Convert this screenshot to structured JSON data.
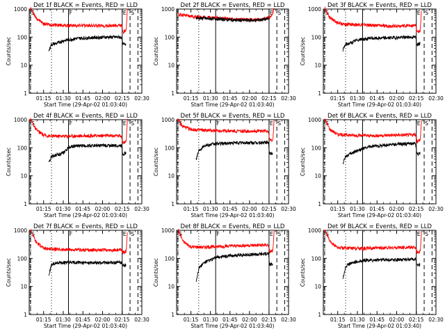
{
  "chart_data": [
    {
      "type": "line",
      "title": "Det 1f BLACK = Events, RED = LLD",
      "xlabel": "Start Time (29-Apr-02 01:03:40)",
      "ylabel": "Counts/sec",
      "yscale": "log",
      "ylim": [
        1,
        1000
      ],
      "xlim_minutes": [
        4,
        90
      ],
      "xticks": [
        "01:15",
        "01:30",
        "01:45",
        "02:00",
        "02:15",
        "02:30"
      ],
      "yticks": [
        "1",
        "10",
        "100",
        "1000"
      ],
      "markers": [
        {
          "label": "S",
          "x_min": 5,
          "style": "dashed"
        },
        {
          "label": "",
          "x_min": 21,
          "style": "dotted"
        },
        {
          "label": "F",
          "x_min": 34,
          "style": "solid"
        },
        {
          "label": "E",
          "x_min": 75,
          "style": "solid"
        },
        {
          "label": "S",
          "x_min": 81,
          "style": "dashed"
        },
        {
          "label": "",
          "x_min": 87,
          "style": "dashed"
        }
      ],
      "series": [
        {
          "name": "LLD",
          "color": "#ff0000",
          "x_min": [
            5,
            9,
            15,
            20,
            25,
            35,
            50,
            60,
            70,
            74.5,
            75.5,
            78,
            79
          ],
          "values": [
            1100,
            500,
            300,
            280,
            270,
            260,
            260,
            250,
            260,
            260,
            150,
            175,
            1000
          ]
        },
        {
          "name": "Events",
          "color": "#000000",
          "x_min": [
            19,
            21,
            25,
            30,
            40,
            50,
            60,
            74.5,
            75.5,
            78
          ],
          "values": [
            33,
            55,
            60,
            75,
            90,
            95,
            100,
            100,
            55,
            60
          ]
        }
      ]
    },
    {
      "type": "line",
      "title": "Det 2f BLACK = Events, RED = LLD",
      "xlabel": "Start Time (29-Apr-02 01:03:40)",
      "ylabel": "Counts/sec",
      "yscale": "log",
      "ylim": [
        1,
        1000
      ],
      "xlim_minutes": [
        4,
        90
      ],
      "xticks": [
        "01:15",
        "01:30",
        "01:45",
        "02:00",
        "02:15",
        "02:30"
      ],
      "yticks": [
        "1",
        "10",
        "100",
        "1000"
      ],
      "markers": [
        {
          "label": "",
          "x_min": 5,
          "style": "dashed"
        },
        {
          "label": "",
          "x_min": 21,
          "style": "dotted"
        },
        {
          "label": "",
          "x_min": 34,
          "style": "solid"
        },
        {
          "label": "E",
          "x_min": 75,
          "style": "solid"
        },
        {
          "label": "S",
          "x_min": 81,
          "style": "dashed"
        },
        {
          "label": "",
          "x_min": 87,
          "style": "dashed"
        }
      ],
      "series": [
        {
          "name": "LLD",
          "color": "#ff0000",
          "x_min": [
            5,
            10,
            20,
            35,
            50,
            65,
            72,
            75,
            77,
            79
          ],
          "values": [
            650,
            600,
            520,
            490,
            420,
            420,
            460,
            480,
            560,
            1100
          ]
        },
        {
          "name": "Events",
          "color": "#000000",
          "x_min": [
            19,
            22,
            35,
            50,
            65,
            75
          ],
          "values": [
            480,
            470,
            450,
            400,
            400,
            450
          ]
        }
      ]
    },
    {
      "type": "line",
      "title": "Det 3f BLACK = Events, RED = LLD",
      "xlabel": "Start Time (29-Apr-02 01:03:40)",
      "ylabel": "Counts/sec",
      "yscale": "log",
      "ylim": [
        1,
        1000
      ],
      "xlim_minutes": [
        4,
        90
      ],
      "xticks": [
        "01:15",
        "01:30",
        "01:45",
        "02:00",
        "02:15",
        "02:30"
      ],
      "yticks": [
        "1",
        "10",
        "100",
        "1000"
      ],
      "markers": [
        {
          "label": "S",
          "x_min": 5,
          "style": "dashed"
        },
        {
          "label": "",
          "x_min": 21,
          "style": "dotted"
        },
        {
          "label": "",
          "x_min": 34,
          "style": "solid"
        },
        {
          "label": "E",
          "x_min": 75,
          "style": "solid"
        },
        {
          "label": "S",
          "x_min": 81,
          "style": "dashed"
        },
        {
          "label": "",
          "x_min": 87,
          "style": "dashed"
        }
      ],
      "series": [
        {
          "name": "LLD",
          "color": "#ff0000",
          "x_min": [
            5,
            9,
            15,
            20,
            30,
            45,
            60,
            74.5,
            75.5,
            78,
            79
          ],
          "values": [
            1100,
            500,
            320,
            290,
            280,
            260,
            250,
            260,
            150,
            175,
            1000
          ]
        },
        {
          "name": "Events",
          "color": "#000000",
          "x_min": [
            19,
            21,
            25,
            30,
            40,
            55,
            70,
            74.5,
            75.5,
            78
          ],
          "values": [
            35,
            55,
            62,
            80,
            90,
            95,
            100,
            100,
            55,
            60
          ]
        }
      ]
    },
    {
      "type": "line",
      "title": "Det 4f BLACK = Events, RED = LLD",
      "xlabel": "Start Time (29-Apr-02 01:03:40)",
      "ylabel": "Counts/sec",
      "yscale": "log",
      "ylim": [
        1,
        1000
      ],
      "xlim_minutes": [
        4,
        90
      ],
      "xticks": [
        "01:15",
        "01:30",
        "01:45",
        "02:00",
        "02:15",
        "02:30"
      ],
      "yticks": [
        "1",
        "10",
        "100",
        "1000"
      ],
      "markers": [
        {
          "label": "S",
          "x_min": 5,
          "style": "dashed"
        },
        {
          "label": "",
          "x_min": 21,
          "style": "dotted"
        },
        {
          "label": "F",
          "x_min": 34,
          "style": "solid"
        },
        {
          "label": "E",
          "x_min": 75,
          "style": "solid"
        },
        {
          "label": "S",
          "x_min": 81,
          "style": "dashed"
        },
        {
          "label": "",
          "x_min": 87,
          "style": "dashed"
        }
      ],
      "series": [
        {
          "name": "LLD",
          "color": "#ff0000",
          "x_min": [
            5,
            9,
            15,
            20,
            35,
            50,
            65,
            74.5,
            75.5,
            78,
            79
          ],
          "values": [
            1100,
            450,
            280,
            260,
            260,
            270,
            270,
            270,
            150,
            170,
            1000
          ]
        },
        {
          "name": "Events",
          "color": "#000000",
          "x_min": [
            19,
            21,
            30,
            35,
            45,
            60,
            74.5,
            75.5,
            78
          ],
          "values": [
            28,
            50,
            65,
            110,
            120,
            120,
            120,
            60,
            65
          ]
        }
      ]
    },
    {
      "type": "line",
      "title": "Det 5f BLACK = Events, RED = LLD",
      "xlabel": "Start Time (29-Apr-02 01:03:40)",
      "ylabel": "Counts/sec",
      "yscale": "log",
      "ylim": [
        1,
        1000
      ],
      "xlim_minutes": [
        4,
        90
      ],
      "xticks": [
        "01:15",
        "01:30",
        "01:45",
        "02:00",
        "02:15",
        "02:30"
      ],
      "yticks": [
        "1",
        "10",
        "100",
        "1000"
      ],
      "markers": [
        {
          "label": "S",
          "x_min": 5,
          "style": "dashed"
        },
        {
          "label": "",
          "x_min": 21,
          "style": "dotted"
        },
        {
          "label": "F",
          "x_min": 34,
          "style": "solid"
        },
        {
          "label": "E",
          "x_min": 75,
          "style": "solid"
        },
        {
          "label": "S",
          "x_min": 81,
          "style": "dashed"
        },
        {
          "label": "",
          "x_min": 87,
          "style": "dashed"
        }
      ],
      "series": [
        {
          "name": "LLD",
          "color": "#ff0000",
          "x_min": [
            5,
            8,
            15,
            25,
            40,
            55,
            74.5,
            75.5,
            78,
            79
          ],
          "values": [
            1100,
            600,
            450,
            420,
            400,
            390,
            400,
            180,
            200,
            1000
          ]
        },
        {
          "name": "Events",
          "color": "#000000",
          "x_min": [
            19,
            21,
            25,
            35,
            50,
            65,
            74.5,
            75.5,
            78
          ],
          "values": [
            40,
            80,
            120,
            140,
            150,
            150,
            155,
            60,
            65
          ]
        }
      ]
    },
    {
      "type": "line",
      "title": "Det 6f BLACK = Events, RED = LLD",
      "xlabel": "Start Time (29-Apr-02 01:03:40)",
      "ylabel": "Counts/sec",
      "yscale": "log",
      "ylim": [
        1,
        1000
      ],
      "xlim_minutes": [
        4,
        90
      ],
      "xticks": [
        "01:15",
        "01:30",
        "01:45",
        "02:00",
        "02:15",
        "02:30"
      ],
      "yticks": [
        "1",
        "10",
        "100",
        "1000"
      ],
      "markers": [
        {
          "label": "S",
          "x_min": 5,
          "style": "dashed"
        },
        {
          "label": "",
          "x_min": 21,
          "style": "dotted"
        },
        {
          "label": "",
          "x_min": 34,
          "style": "solid"
        },
        {
          "label": "E",
          "x_min": 75,
          "style": "solid"
        },
        {
          "label": "S",
          "x_min": 81,
          "style": "dashed"
        },
        {
          "label": "",
          "x_min": 87,
          "style": "dashed"
        }
      ],
      "series": [
        {
          "name": "LLD",
          "color": "#ff0000",
          "x_min": [
            5,
            9,
            15,
            25,
            40,
            55,
            74.5,
            75.5,
            78,
            79
          ],
          "values": [
            1100,
            450,
            300,
            280,
            270,
            280,
            290,
            170,
            190,
            1000
          ]
        },
        {
          "name": "Events",
          "color": "#000000",
          "x_min": [
            19,
            21,
            30,
            40,
            55,
            70,
            74.5,
            75.5,
            78
          ],
          "values": [
            28,
            50,
            80,
            110,
            130,
            140,
            140,
            60,
            65
          ]
        }
      ]
    },
    {
      "type": "line",
      "title": "Det 7f BLACK = Events, RED = LLD",
      "xlabel": "Start Time (29-Apr-02 01:03:40)",
      "ylabel": "Counts/sec",
      "yscale": "log",
      "ylim": [
        1,
        1000
      ],
      "xlim_minutes": [
        4,
        90
      ],
      "xticks": [
        "01:15",
        "01:30",
        "01:45",
        "02:00",
        "02:15",
        "02:30"
      ],
      "yticks": [
        "1",
        "10",
        "100",
        "1000"
      ],
      "markers": [
        {
          "label": "S",
          "x_min": 5,
          "style": "dashed"
        },
        {
          "label": "",
          "x_min": 21,
          "style": "dotted"
        },
        {
          "label": "F",
          "x_min": 34,
          "style": "solid"
        },
        {
          "label": "E",
          "x_min": 75,
          "style": "solid"
        },
        {
          "label": "S",
          "x_min": 81,
          "style": "dashed"
        },
        {
          "label": "",
          "x_min": 87,
          "style": "dashed"
        }
      ],
      "series": [
        {
          "name": "LLD",
          "color": "#ff0000",
          "x_min": [
            5,
            9,
            15,
            25,
            40,
            55,
            74.5,
            75.5,
            78,
            79
          ],
          "values": [
            1100,
            400,
            230,
            210,
            200,
            200,
            200,
            160,
            180,
            1000
          ]
        },
        {
          "name": "Events",
          "color": "#000000",
          "x_min": [
            19,
            21,
            25,
            35,
            50,
            65,
            74.5,
            75.5,
            78
          ],
          "values": [
            25,
            60,
            70,
            72,
            70,
            70,
            72,
            55,
            60
          ]
        }
      ]
    },
    {
      "type": "line",
      "title": "Det 8f BLACK = Events, RED = LLD",
      "xlabel": "Start Time (29-Apr-02 01:03:40)",
      "ylabel": "Counts/sec",
      "yscale": "log",
      "ylim": [
        1,
        1000
      ],
      "xlim_minutes": [
        4,
        90
      ],
      "xticks": [
        "01:15",
        "01:30",
        "01:45",
        "02:00",
        "02:15",
        "02:30"
      ],
      "yticks": [
        "1",
        "10",
        "100",
        "1000"
      ],
      "markers": [
        {
          "label": "S",
          "x_min": 5,
          "style": "dashed"
        },
        {
          "label": "",
          "x_min": 21,
          "style": "dotted"
        },
        {
          "label": "F",
          "x_min": 34,
          "style": "solid"
        },
        {
          "label": "E",
          "x_min": 75,
          "style": "solid"
        },
        {
          "label": "S",
          "x_min": 81,
          "style": "dashed"
        },
        {
          "label": "",
          "x_min": 87,
          "style": "dashed"
        }
      ],
      "series": [
        {
          "name": "LLD",
          "color": "#ff0000",
          "x_min": [
            5,
            9,
            15,
            25,
            40,
            55,
            74.5,
            75.5,
            78,
            79
          ],
          "values": [
            1100,
            400,
            260,
            250,
            270,
            290,
            300,
            170,
            190,
            1000
          ]
        },
        {
          "name": "Events",
          "color": "#000000",
          "x_min": [
            19,
            21,
            25,
            35,
            50,
            65,
            74.5,
            75.5,
            78
          ],
          "values": [
            15,
            45,
            70,
            110,
            130,
            140,
            150,
            60,
            65
          ]
        }
      ]
    },
    {
      "type": "line",
      "title": "Det 9f BLACK = Events, RED = LLD",
      "xlabel": "Start Time (29-Apr-02 01:03:40)",
      "ylabel": "Counts/sec",
      "yscale": "log",
      "ylim": [
        1,
        1000
      ],
      "xlim_minutes": [
        4,
        90
      ],
      "xticks": [
        "01:15",
        "01:30",
        "01:45",
        "02:00",
        "02:15",
        "02:30"
      ],
      "yticks": [
        "1",
        "10",
        "100",
        "1000"
      ],
      "markers": [
        {
          "label": "S",
          "x_min": 5,
          "style": "dashed"
        },
        {
          "label": "",
          "x_min": 21,
          "style": "dotted"
        },
        {
          "label": "",
          "x_min": 34,
          "style": "solid"
        },
        {
          "label": "E",
          "x_min": 75,
          "style": "solid"
        },
        {
          "label": "S",
          "x_min": 81,
          "style": "dashed"
        },
        {
          "label": "",
          "x_min": 87,
          "style": "dashed"
        }
      ],
      "series": [
        {
          "name": "LLD",
          "color": "#ff0000",
          "x_min": [
            5,
            9,
            15,
            25,
            40,
            55,
            74.5,
            75.5,
            78,
            79
          ],
          "values": [
            1100,
            400,
            240,
            230,
            230,
            240,
            250,
            160,
            180,
            1000
          ]
        },
        {
          "name": "Events",
          "color": "#000000",
          "x_min": [
            19,
            21,
            25,
            35,
            50,
            65,
            74.5,
            75.5,
            78
          ],
          "values": [
            20,
            50,
            70,
            85,
            90,
            90,
            95,
            55,
            60
          ]
        }
      ]
    }
  ]
}
